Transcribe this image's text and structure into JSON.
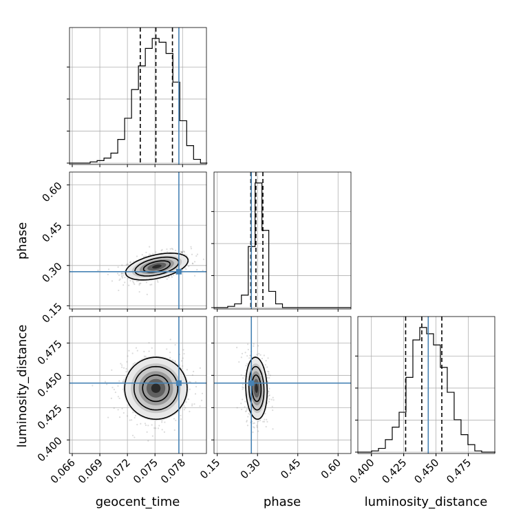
{
  "chart_data": {
    "type": "corner",
    "parameters": [
      "geocent_time",
      "phase",
      "luminosity_distance"
    ],
    "ranges": {
      "geocent_time": [
        0.0657,
        0.0806
      ],
      "phase": [
        0.138,
        0.648
      ],
      "luminosity_distance": [
        0.3895,
        0.4955
      ]
    },
    "ticks": {
      "geocent_time": [
        0.066,
        0.069,
        0.072,
        0.075,
        0.078
      ],
      "phase": [
        0.15,
        0.3,
        0.45,
        0.6
      ],
      "luminosity_distance": [
        0.4,
        0.425,
        0.45,
        0.475
      ]
    },
    "tick_labels": {
      "geocent_time": [
        "0.066",
        "0.069",
        "0.072",
        "0.075",
        "0.078"
      ],
      "phase": [
        "0.15",
        "0.30",
        "0.45",
        "0.60"
      ],
      "luminosity_distance": [
        "0.400",
        "0.425",
        "0.450",
        "0.475"
      ]
    },
    "truths": {
      "geocent_time": 0.0776,
      "phase": 0.277,
      "luminosity_distance": 0.444
    },
    "quantiles": {
      "geocent_time": [
        0.0734,
        0.0751,
        0.0769
      ],
      "phase": [
        0.275,
        0.294,
        0.32
      ],
      "luminosity_distance": [
        0.4265,
        0.439,
        0.4545
      ]
    },
    "histograms": {
      "geocent_time": {
        "bin_edges": [
          0.0657,
          0.06645,
          0.0672,
          0.06795,
          0.0687,
          0.06945,
          0.0702,
          0.07095,
          0.0717,
          0.07245,
          0.0732,
          0.07395,
          0.0747,
          0.07545,
          0.0762,
          0.07695,
          0.0777,
          0.07845,
          0.0792,
          0.07995,
          0.0807
        ],
        "counts": [
          0,
          0,
          0,
          1,
          2,
          4,
          8,
          19,
          36,
          59,
          78,
          92,
          100,
          97,
          88,
          65,
          34,
          14,
          3,
          0
        ]
      },
      "phase": {
        "bin_edges": [
          0.138,
          0.1635,
          0.189,
          0.2145,
          0.24,
          0.2655,
          0.291,
          0.3165,
          0.342,
          0.3675,
          0.393,
          0.4185,
          0.444,
          0.4695,
          0.495,
          0.5205,
          0.546,
          0.5715,
          0.597,
          0.6225,
          0.648
        ],
        "counts": [
          0,
          0,
          1,
          3,
          10,
          49,
          100,
          62,
          13,
          3,
          0,
          0,
          0,
          0,
          0,
          0,
          0,
          0,
          0,
          0
        ]
      },
      "luminosity_distance": {
        "bin_edges": [
          0.3895,
          0.39483,
          0.40015,
          0.40548,
          0.4108,
          0.41613,
          0.42145,
          0.42678,
          0.4321,
          0.43743,
          0.44275,
          0.44808,
          0.4534,
          0.45873,
          0.46405,
          0.46938,
          0.4747,
          0.48003,
          0.48535,
          0.49068,
          0.496
        ],
        "counts": [
          0,
          0,
          1,
          3,
          10,
          20,
          32,
          60,
          90,
          100,
          95,
          86,
          68,
          48,
          26,
          14,
          6,
          1,
          0,
          0
        ]
      }
    },
    "joint": [
      {
        "x": "geocent_time",
        "y": "phase",
        "mean": [
          0.0752,
          0.296
        ],
        "sigma": [
          0.0017,
          0.025
        ],
        "rho": 0.45
      },
      {
        "x": "geocent_time",
        "y": "luminosity_distance",
        "mean": [
          0.0751,
          0.44
        ],
        "sigma": [
          0.0017,
          0.012
        ],
        "rho": 0.0
      },
      {
        "x": "phase",
        "y": "luminosity_distance",
        "mean": [
          0.296,
          0.44
        ],
        "sigma": [
          0.02,
          0.012
        ],
        "rho": -0.1
      }
    ],
    "grid": true,
    "colors": {
      "hist": "#000000",
      "truth": "#4682b4",
      "quantile": "#000000",
      "grid": "#b0b0b0",
      "scatter": "#7f7f7f"
    }
  }
}
